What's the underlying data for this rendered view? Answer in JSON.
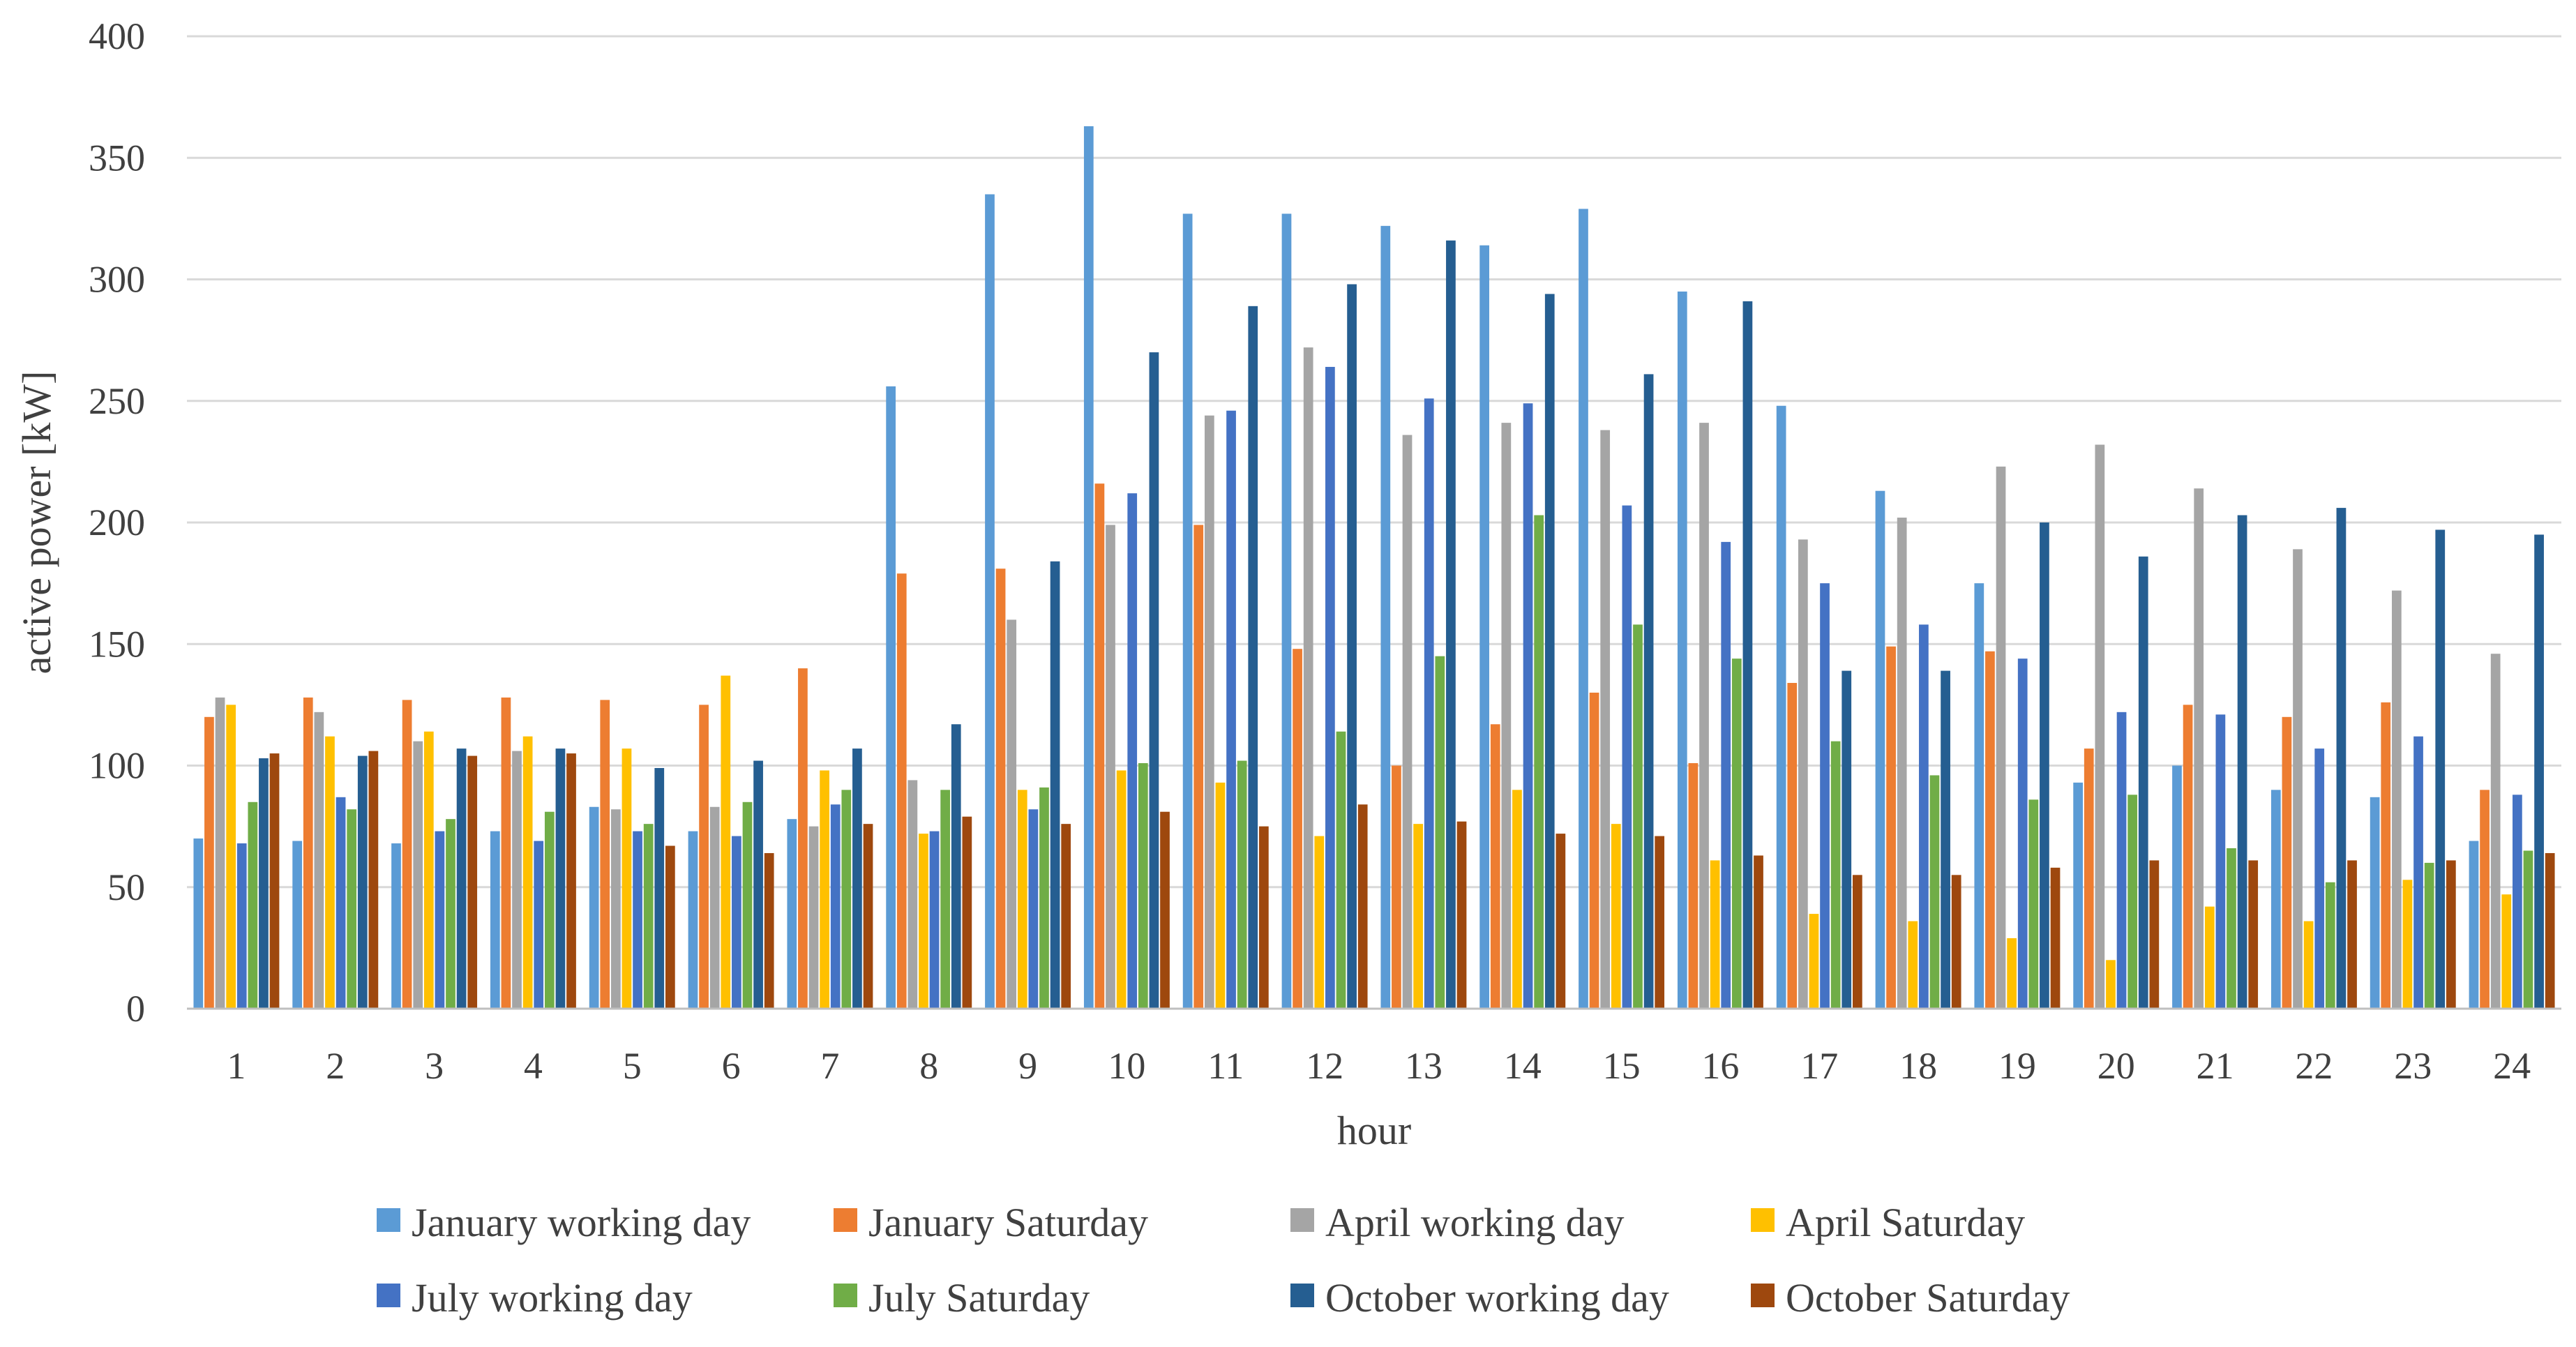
{
  "chart_data": {
    "type": "bar",
    "title": "",
    "xlabel": "hour",
    "ylabel": "active power [kW]",
    "ylim": [
      0,
      400
    ],
    "yticks": [
      0,
      50,
      100,
      150,
      200,
      250,
      300,
      350,
      400
    ],
    "grid": true,
    "legend_position": "bottom",
    "categories": [
      "1",
      "2",
      "3",
      "4",
      "5",
      "6",
      "7",
      "8",
      "9",
      "10",
      "11",
      "12",
      "13",
      "14",
      "15",
      "16",
      "17",
      "18",
      "19",
      "20",
      "21",
      "22",
      "23",
      "24"
    ],
    "series": [
      {
        "name": "January working day",
        "color": "#5b9bd5",
        "values": [
          70,
          69,
          68,
          73,
          83,
          73,
          78,
          256,
          335,
          363,
          327,
          327,
          322,
          314,
          329,
          295,
          248,
          213,
          175,
          93,
          100,
          90,
          87,
          69
        ]
      },
      {
        "name": "January Saturday",
        "color": "#ed7d31",
        "values": [
          120,
          128,
          127,
          128,
          127,
          125,
          140,
          179,
          181,
          216,
          199,
          148,
          100,
          117,
          130,
          101,
          134,
          149,
          147,
          107,
          125,
          120,
          126,
          90
        ]
      },
      {
        "name": "April working day",
        "color": "#a5a5a5",
        "values": [
          128,
          122,
          110,
          106,
          82,
          83,
          75,
          94,
          160,
          199,
          244,
          272,
          236,
          241,
          238,
          241,
          193,
          202,
          223,
          232,
          214,
          189,
          172,
          146
        ]
      },
      {
        "name": "April Saturday",
        "color": "#ffc000",
        "values": [
          125,
          112,
          114,
          112,
          107,
          137,
          98,
          72,
          90,
          98,
          93,
          71,
          76,
          90,
          76,
          61,
          39,
          36,
          29,
          20,
          42,
          36,
          53,
          47
        ]
      },
      {
        "name": "July working day",
        "color": "#4472c4",
        "values": [
          68,
          87,
          73,
          69,
          73,
          71,
          84,
          73,
          82,
          212,
          246,
          264,
          251,
          249,
          207,
          192,
          175,
          158,
          144,
          122,
          121,
          107,
          112,
          88
        ]
      },
      {
        "name": "July Saturday",
        "color": "#70ad47",
        "values": [
          85,
          82,
          78,
          81,
          76,
          85,
          90,
          90,
          91,
          101,
          102,
          114,
          145,
          203,
          158,
          144,
          110,
          96,
          86,
          88,
          66,
          52,
          60,
          65
        ]
      },
      {
        "name": "October working day",
        "color": "#255e91",
        "values": [
          103,
          104,
          107,
          107,
          99,
          102,
          107,
          117,
          184,
          270,
          289,
          298,
          316,
          294,
          261,
          291,
          139,
          139,
          200,
          186,
          203,
          206,
          197,
          195
        ]
      },
      {
        "name": "October Saturday",
        "color": "#9e480e",
        "values": [
          105,
          106,
          104,
          105,
          67,
          64,
          76,
          79,
          76,
          81,
          75,
          84,
          77,
          72,
          71,
          63,
          55,
          55,
          58,
          61,
          61,
          61,
          61,
          64
        ]
      }
    ]
  }
}
